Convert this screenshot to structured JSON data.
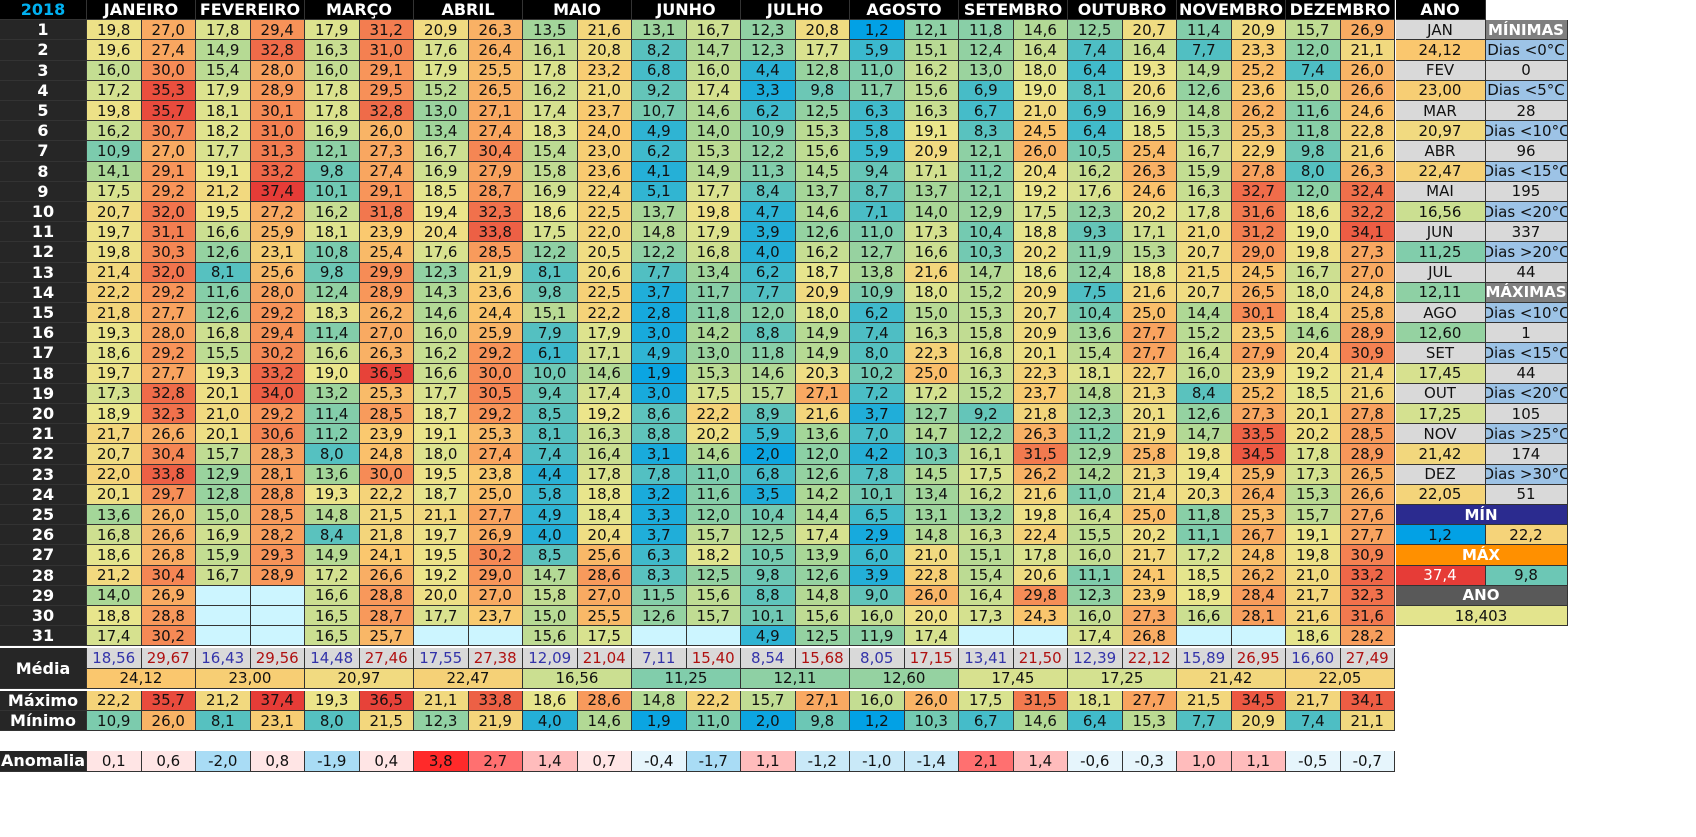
{
  "year_label": "2018",
  "months": [
    "JANEIRO",
    "FEVEREIRO",
    "MARÇO",
    "ABRIL",
    "MAIO",
    "JUNHO",
    "JULHO",
    "AGOSTO",
    "SETEMBRO",
    "OUTUBRO",
    "NOVEMBRO",
    "DEZEMBRO"
  ],
  "ano_label": "ANO",
  "days": [
    [
      "19,8",
      "27,0",
      "17,8",
      "29,4",
      "17,9",
      "31,2",
      "20,9",
      "26,3",
      "13,5",
      "21,6",
      "13,1",
      "16,7",
      "12,3",
      "20,8",
      "1,2",
      "12,1",
      "11,8",
      "14,6",
      "12,5",
      "20,7",
      "11,4",
      "20,9",
      "15,7",
      "26,9"
    ],
    [
      "19,6",
      "27,4",
      "14,9",
      "32,8",
      "16,3",
      "31,0",
      "17,6",
      "26,4",
      "16,1",
      "20,8",
      "8,2",
      "14,7",
      "12,3",
      "17,7",
      "5,9",
      "15,1",
      "12,4",
      "16,4",
      "7,4",
      "16,4",
      "7,7",
      "23,3",
      "12,0",
      "21,1"
    ],
    [
      "16,0",
      "30,0",
      "15,4",
      "28,0",
      "16,0",
      "29,1",
      "17,9",
      "25,5",
      "17,8",
      "23,2",
      "6,8",
      "16,0",
      "4,4",
      "12,8",
      "11,0",
      "16,2",
      "13,0",
      "18,0",
      "6,4",
      "19,3",
      "14,9",
      "25,2",
      "7,4",
      "26,0"
    ],
    [
      "17,2",
      "35,3",
      "17,9",
      "28,9",
      "17,8",
      "29,5",
      "15,2",
      "26,5",
      "16,2",
      "21,0",
      "9,2",
      "17,4",
      "3,3",
      "9,8",
      "11,7",
      "15,6",
      "6,9",
      "19,0",
      "8,1",
      "20,6",
      "12,6",
      "23,6",
      "15,0",
      "26,6"
    ],
    [
      "19,8",
      "35,7",
      "18,1",
      "30,1",
      "17,8",
      "32,8",
      "13,0",
      "27,1",
      "17,4",
      "23,7",
      "10,7",
      "14,6",
      "6,2",
      "12,5",
      "6,3",
      "16,3",
      "6,7",
      "21,0",
      "6,9",
      "16,9",
      "14,8",
      "26,2",
      "11,6",
      "24,6"
    ],
    [
      "16,2",
      "30,7",
      "18,2",
      "31,0",
      "16,9",
      "26,0",
      "13,4",
      "27,4",
      "18,3",
      "24,0",
      "4,9",
      "14,0",
      "10,9",
      "15,3",
      "5,8",
      "19,1",
      "8,3",
      "24,5",
      "6,4",
      "18,5",
      "15,3",
      "25,3",
      "11,8",
      "22,8"
    ],
    [
      "10,9",
      "27,0",
      "17,7",
      "31,3",
      "12,1",
      "27,3",
      "16,7",
      "30,4",
      "15,4",
      "23,0",
      "6,2",
      "15,3",
      "12,2",
      "15,6",
      "5,9",
      "20,9",
      "12,1",
      "26,0",
      "10,5",
      "25,4",
      "16,7",
      "22,9",
      "9,8",
      "21,6"
    ],
    [
      "14,1",
      "29,1",
      "19,1",
      "33,2",
      "9,8",
      "27,4",
      "16,9",
      "27,9",
      "15,8",
      "23,6",
      "4,1",
      "14,9",
      "11,3",
      "14,5",
      "9,4",
      "17,1",
      "11,2",
      "20,4",
      "16,2",
      "26,3",
      "15,9",
      "27,8",
      "8,0",
      "26,3"
    ],
    [
      "17,5",
      "29,2",
      "21,2",
      "37,4",
      "10,1",
      "29,1",
      "18,5",
      "28,7",
      "16,9",
      "22,4",
      "5,1",
      "17,7",
      "8,4",
      "13,7",
      "8,7",
      "13,7",
      "12,1",
      "19,2",
      "17,6",
      "24,6",
      "16,3",
      "32,7",
      "12,0",
      "32,4"
    ],
    [
      "20,7",
      "32,0",
      "19,5",
      "27,2",
      "16,2",
      "31,8",
      "19,4",
      "32,3",
      "18,6",
      "22,5",
      "13,7",
      "19,8",
      "4,7",
      "14,6",
      "7,1",
      "14,0",
      "12,9",
      "17,5",
      "12,3",
      "20,2",
      "17,8",
      "31,6",
      "18,6",
      "32,2"
    ],
    [
      "19,7",
      "31,1",
      "16,6",
      "25,9",
      "18,1",
      "23,9",
      "20,4",
      "33,8",
      "17,5",
      "22,0",
      "14,8",
      "17,9",
      "3,9",
      "12,6",
      "11,0",
      "17,3",
      "10,4",
      "18,8",
      "9,3",
      "17,1",
      "21,0",
      "31,2",
      "19,0",
      "34,1"
    ],
    [
      "19,8",
      "30,3",
      "12,6",
      "23,1",
      "10,8",
      "25,4",
      "17,6",
      "28,5",
      "12,2",
      "20,5",
      "12,2",
      "16,8",
      "4,0",
      "16,2",
      "12,7",
      "16,6",
      "10,3",
      "20,2",
      "11,9",
      "15,3",
      "20,7",
      "29,0",
      "19,8",
      "27,3"
    ],
    [
      "21,4",
      "32,0",
      "8,1",
      "25,6",
      "9,8",
      "29,9",
      "12,3",
      "21,9",
      "8,1",
      "20,6",
      "7,7",
      "13,4",
      "6,2",
      "18,7",
      "13,8",
      "21,6",
      "14,7",
      "18,6",
      "12,4",
      "18,8",
      "21,5",
      "24,5",
      "16,7",
      "27,0"
    ],
    [
      "22,2",
      "29,2",
      "11,6",
      "28,0",
      "12,4",
      "28,9",
      "14,3",
      "23,6",
      "9,8",
      "22,5",
      "3,7",
      "11,7",
      "7,7",
      "20,9",
      "10,9",
      "18,0",
      "15,2",
      "20,9",
      "7,5",
      "21,6",
      "20,7",
      "26,5",
      "18,0",
      "24,8"
    ],
    [
      "21,8",
      "27,7",
      "12,6",
      "29,2",
      "18,3",
      "26,2",
      "14,6",
      "24,4",
      "15,1",
      "22,2",
      "2,8",
      "11,8",
      "12,0",
      "18,0",
      "6,2",
      "15,0",
      "15,3",
      "20,7",
      "10,4",
      "25,0",
      "14,4",
      "30,1",
      "18,4",
      "25,8"
    ],
    [
      "19,3",
      "28,0",
      "16,8",
      "29,4",
      "11,4",
      "27,0",
      "16,0",
      "25,9",
      "7,9",
      "17,9",
      "3,0",
      "14,2",
      "8,8",
      "14,9",
      "7,4",
      "16,3",
      "15,8",
      "20,9",
      "13,6",
      "27,7",
      "15,2",
      "23,5",
      "14,6",
      "28,9"
    ],
    [
      "18,6",
      "29,2",
      "15,5",
      "30,2",
      "16,6",
      "26,3",
      "16,2",
      "29,2",
      "6,1",
      "17,1",
      "4,9",
      "13,0",
      "11,8",
      "14,9",
      "8,0",
      "22,3",
      "16,8",
      "20,1",
      "15,4",
      "27,7",
      "16,4",
      "27,9",
      "20,4",
      "30,9"
    ],
    [
      "19,7",
      "27,7",
      "19,3",
      "33,2",
      "19,0",
      "36,5",
      "16,6",
      "30,0",
      "10,0",
      "14,6",
      "1,9",
      "15,3",
      "14,6",
      "20,3",
      "10,2",
      "25,0",
      "16,3",
      "22,3",
      "18,1",
      "22,7",
      "16,0",
      "23,9",
      "19,2",
      "21,4"
    ],
    [
      "17,3",
      "32,8",
      "20,1",
      "34,0",
      "13,2",
      "25,3",
      "17,7",
      "30,5",
      "9,4",
      "17,4",
      "3,0",
      "17,5",
      "15,7",
      "27,1",
      "7,2",
      "17,2",
      "15,2",
      "23,7",
      "14,8",
      "21,3",
      "8,4",
      "25,2",
      "18,5",
      "21,6"
    ],
    [
      "18,9",
      "32,3",
      "21,0",
      "29,2",
      "11,4",
      "28,5",
      "18,7",
      "29,2",
      "8,5",
      "19,2",
      "8,6",
      "22,2",
      "8,9",
      "21,6",
      "3,7",
      "12,7",
      "9,2",
      "21,8",
      "12,3",
      "20,1",
      "12,6",
      "27,3",
      "20,1",
      "27,8"
    ],
    [
      "21,7",
      "26,6",
      "20,1",
      "30,6",
      "11,2",
      "23,9",
      "19,1",
      "25,3",
      "8,1",
      "16,3",
      "8,8",
      "20,2",
      "5,9",
      "13,6",
      "7,0",
      "14,7",
      "12,2",
      "26,3",
      "11,2",
      "21,9",
      "14,7",
      "33,5",
      "20,2",
      "28,5"
    ],
    [
      "20,7",
      "30,4",
      "15,7",
      "28,3",
      "8,0",
      "24,8",
      "18,0",
      "27,4",
      "7,4",
      "16,4",
      "3,1",
      "14,6",
      "2,0",
      "12,0",
      "4,2",
      "10,3",
      "16,1",
      "31,5",
      "12,9",
      "25,8",
      "19,8",
      "34,5",
      "17,8",
      "28,9"
    ],
    [
      "22,0",
      "33,8",
      "12,9",
      "28,1",
      "13,6",
      "30,0",
      "19,5",
      "23,8",
      "4,4",
      "17,8",
      "7,8",
      "11,0",
      "6,8",
      "12,6",
      "7,8",
      "14,5",
      "17,5",
      "26,2",
      "14,2",
      "21,3",
      "19,4",
      "25,9",
      "17,3",
      "26,5"
    ],
    [
      "20,1",
      "29,7",
      "12,8",
      "28,8",
      "19,3",
      "22,2",
      "18,7",
      "25,0",
      "5,8",
      "18,8",
      "3,2",
      "11,6",
      "3,5",
      "14,2",
      "10,1",
      "13,4",
      "16,2",
      "21,6",
      "11,0",
      "21,4",
      "20,3",
      "26,4",
      "15,3",
      "26,6"
    ],
    [
      "13,6",
      "26,0",
      "15,0",
      "28,5",
      "14,8",
      "21,5",
      "21,1",
      "27,7",
      "4,9",
      "18,4",
      "3,3",
      "12,0",
      "10,4",
      "14,4",
      "6,5",
      "13,1",
      "13,2",
      "19,8",
      "16,4",
      "25,0",
      "11,8",
      "25,3",
      "15,7",
      "27,6"
    ],
    [
      "16,8",
      "26,6",
      "16,9",
      "28,2",
      "8,4",
      "21,8",
      "19,7",
      "26,9",
      "4,0",
      "20,4",
      "3,7",
      "15,7",
      "12,5",
      "17,4",
      "2,9",
      "14,8",
      "16,3",
      "22,4",
      "15,5",
      "20,2",
      "11,1",
      "26,7",
      "19,1",
      "27,7"
    ],
    [
      "18,6",
      "26,8",
      "15,9",
      "29,3",
      "14,9",
      "24,1",
      "19,5",
      "30,2",
      "8,5",
      "25,6",
      "6,3",
      "18,2",
      "10,5",
      "13,9",
      "6,0",
      "21,0",
      "15,1",
      "17,8",
      "16,0",
      "21,7",
      "17,2",
      "24,8",
      "19,8",
      "30,9"
    ],
    [
      "21,2",
      "30,4",
      "16,7",
      "28,9",
      "17,2",
      "26,6",
      "19,2",
      "29,0",
      "14,7",
      "28,6",
      "8,3",
      "12,5",
      "9,8",
      "12,6",
      "3,9",
      "22,8",
      "15,4",
      "20,6",
      "11,1",
      "24,1",
      "18,5",
      "26,2",
      "21,0",
      "33,2"
    ],
    [
      "14,0",
      "26,9",
      "",
      "",
      "16,6",
      "28,8",
      "20,0",
      "27,0",
      "15,8",
      "27,0",
      "11,5",
      "15,6",
      "8,8",
      "14,8",
      "9,0",
      "26,0",
      "16,4",
      "29,8",
      "12,3",
      "23,9",
      "18,9",
      "28,4",
      "21,7",
      "32,3"
    ],
    [
      "18,8",
      "28,8",
      "",
      "",
      "16,5",
      "28,7",
      "17,7",
      "23,7",
      "15,0",
      "25,5",
      "12,6",
      "15,7",
      "10,1",
      "15,6",
      "16,0",
      "20,0",
      "17,3",
      "24,3",
      "16,0",
      "27,3",
      "16,6",
      "28,1",
      "21,6",
      "31,6"
    ],
    [
      "17,4",
      "30,2",
      "",
      "",
      "16,5",
      "25,7",
      "",
      "",
      "15,6",
      "17,5",
      "",
      "",
      "4,9",
      "12,5",
      "11,9",
      "17,4",
      "",
      "",
      "17,4",
      "26,8",
      "",
      "",
      "18,6",
      "28,2"
    ]
  ],
  "media_label": "Média",
  "media": [
    "18,56",
    "29,67",
    "16,43",
    "29,56",
    "14,48",
    "27,46",
    "17,55",
    "27,38",
    "12,09",
    "21,04",
    "7,11",
    "15,40",
    "8,54",
    "15,68",
    "8,05",
    "17,15",
    "13,41",
    "21,50",
    "12,39",
    "22,12",
    "15,89",
    "26,95",
    "16,60",
    "27,49"
  ],
  "media_avg": [
    "24,12",
    "23,00",
    "20,97",
    "22,47",
    "16,56",
    "11,25",
    "12,11",
    "12,60",
    "17,45",
    "17,25",
    "21,42",
    "22,05"
  ],
  "maximo_label": "Máximo",
  "maximo": [
    "22,2",
    "35,7",
    "21,2",
    "37,4",
    "19,3",
    "36,5",
    "21,1",
    "33,8",
    "18,6",
    "28,6",
    "14,8",
    "22,2",
    "15,7",
    "27,1",
    "16,0",
    "26,0",
    "17,5",
    "31,5",
    "18,1",
    "27,7",
    "21,5",
    "34,5",
    "21,7",
    "34,1"
  ],
  "minimo_label": "Mínimo",
  "minimo": [
    "10,9",
    "26,0",
    "8,1",
    "23,1",
    "8,0",
    "21,5",
    "12,3",
    "21,9",
    "4,0",
    "14,6",
    "1,9",
    "11,0",
    "2,0",
    "9,8",
    "1,2",
    "10,3",
    "6,7",
    "14,6",
    "6,4",
    "15,3",
    "7,7",
    "20,9",
    "7,4",
    "21,1"
  ],
  "anomalia_label": "Anomalia",
  "anomalia": [
    "0,1",
    "0,6",
    "-2,0",
    "0,8",
    "-1,9",
    "0,4",
    "3,8",
    "2,7",
    "1,4",
    "0,7",
    "-0,4",
    "-1,7",
    "1,1",
    "-1,2",
    "-1,0",
    "-1,4",
    "2,1",
    "1,4",
    "-0,6",
    "-0,3",
    "1,0",
    "1,1",
    "-0,5",
    "-0,7"
  ],
  "ano_rows": [
    [
      "JAN",
      "MÍNIMAS"
    ],
    [
      "24,12",
      "Dias <0°C"
    ],
    [
      "FEV",
      "0"
    ],
    [
      "23,00",
      "Dias <5°C"
    ],
    [
      "MAR",
      "28"
    ],
    [
      "20,97",
      "Dias <10°C"
    ],
    [
      "ABR",
      "96"
    ],
    [
      "22,47",
      "Dias <15°C"
    ],
    [
      "MAI",
      "195"
    ],
    [
      "16,56",
      "Dias <20°C"
    ],
    [
      "JUN",
      "337"
    ],
    [
      "11,25",
      "Dias >20°C"
    ],
    [
      "JUL",
      "44"
    ],
    [
      "12,11",
      "MÁXIMAS"
    ],
    [
      "AGO",
      "Dias <10°C"
    ],
    [
      "12,60",
      "1"
    ],
    [
      "SET",
      "Dias <15°C"
    ],
    [
      "17,45",
      "44"
    ],
    [
      "OUT",
      "Dias <20°C"
    ],
    [
      "17,25",
      "105"
    ],
    [
      "NOV",
      "Dias >25°C"
    ],
    [
      "21,42",
      "174"
    ],
    [
      "DEZ",
      "Dias >30°C"
    ],
    [
      "22,05",
      "51"
    ]
  ],
  "min_label": "MÍN",
  "min_values": [
    "1,2",
    "22,2"
  ],
  "max_label": "MÁX",
  "max_values": [
    "37,4",
    "9,8"
  ],
  "ano_total_label": "ANO",
  "ano_total": "18,403",
  "colors": {
    "header_bg": "#000000",
    "year_text": "#00b0f0",
    "rowlabel_bg": "#262626",
    "min_band": "#2b2b8f",
    "max_band": "#ff9000",
    "ano_band": "#595959"
  }
}
